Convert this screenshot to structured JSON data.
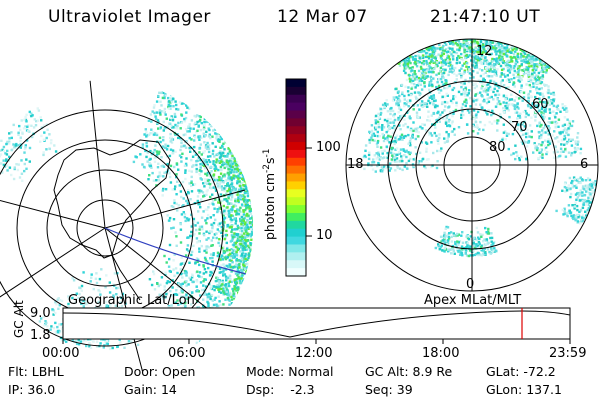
{
  "header": {
    "instrument": "Ultraviolet Imager",
    "date": "12 Mar 07",
    "time": "21:47:10 UT"
  },
  "colorbar": {
    "label": "photon cm",
    "label_sup": "-2",
    "label_unit": "s",
    "label_sup2": "-1",
    "ticks": [
      "100",
      "10"
    ],
    "colors": [
      "#000033",
      "#1a0033",
      "#3a0050",
      "#4a0060",
      "#5a0048",
      "#700030",
      "#900020",
      "#b00010",
      "#d00000",
      "#ee1010",
      "#ff4000",
      "#ff7000",
      "#ffa000",
      "#ffd000",
      "#e8ff20",
      "#c0ff20",
      "#80ff30",
      "#40ee60",
      "#20d8a0",
      "#20d0d0",
      "#40d8e0",
      "#80e8e8",
      "#b0f0f0",
      "#d8f8f8",
      "#f0ffff"
    ]
  },
  "polar_plot": {
    "mlt_labels": [
      "12",
      "18",
      "6",
      "0"
    ],
    "lat_labels": [
      "60",
      "70",
      "80"
    ]
  },
  "timeline": {
    "left_label": "Geographic Lat/Lon",
    "right_label": "Apex MLat/MLT",
    "axis_label": "GC Alt",
    "y_ticks": [
      "9.0",
      "1.8"
    ],
    "x_ticks": [
      "00:00",
      "06:00",
      "12:00",
      "18:00",
      "23:59"
    ],
    "current_marker_time": "21:47",
    "marker_color": "#dd0000"
  },
  "info": {
    "row1": [
      {
        "label": "Flt:",
        "value": "LBHL"
      },
      {
        "label": "Door:",
        "value": "Open"
      },
      {
        "label": "Mode:",
        "value": "Normal"
      },
      {
        "label": "GC Alt:",
        "value": "8.9 Re"
      },
      {
        "label": "GLat:",
        "value": "-72.2"
      }
    ],
    "row2": [
      {
        "label": "IP:",
        "value": "36.0"
      },
      {
        "label": "Gain:",
        "value": "14"
      },
      {
        "label": "Dsp:",
        "value": "-2.3"
      },
      {
        "label": "Seq:",
        "value": "39"
      },
      {
        "label": "GLon:",
        "value": "137.1"
      }
    ]
  }
}
